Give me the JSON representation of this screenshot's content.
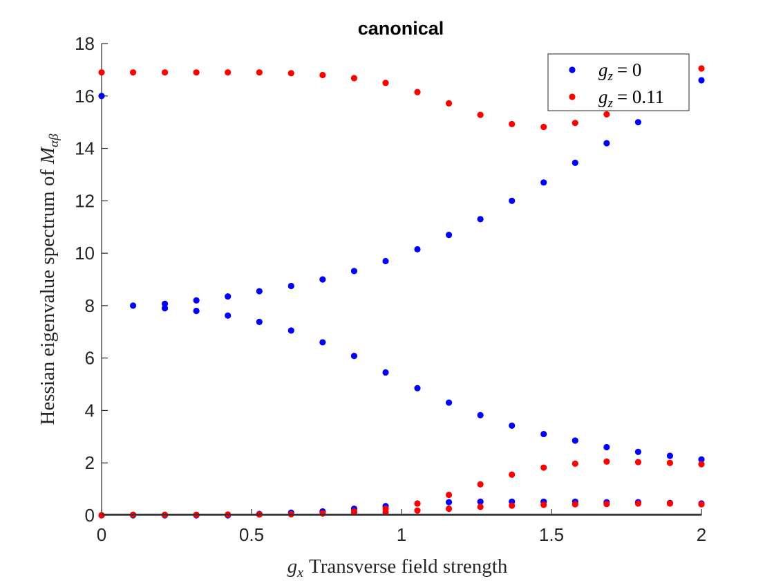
{
  "chart_data": {
    "type": "scatter",
    "title": "canonical",
    "xlabel": {
      "symbol": "g",
      "subscript": "x",
      "text": "Transverse field strength"
    },
    "ylabel": {
      "text": "Hessian eigenvalue spectrum of",
      "symbol": "M",
      "subscript": "αβ"
    },
    "xlim": [
      0,
      2
    ],
    "ylim": [
      0,
      18
    ],
    "xticks": [
      0,
      0.5,
      1,
      1.5,
      2
    ],
    "yticks": [
      0,
      2,
      4,
      6,
      8,
      10,
      12,
      14,
      16,
      18
    ],
    "grid": false,
    "legend": "upper right",
    "series": [
      {
        "name": {
          "symbol": "g",
          "subscript": "z",
          "rest": "= 0"
        },
        "color": "#0000ff",
        "x": [
          0,
          0,
          0.105,
          0.105,
          0.211,
          0.211,
          0.211,
          0.316,
          0.316,
          0.316,
          0.421,
          0.421,
          0.421,
          0.526,
          0.526,
          0.526,
          0.632,
          0.632,
          0.632,
          0.737,
          0.737,
          0.737,
          0.842,
          0.842,
          0.842,
          0.947,
          0.947,
          0.947,
          1.053,
          1.053,
          1.053,
          1.158,
          1.158,
          1.158,
          1.263,
          1.263,
          1.263,
          1.368,
          1.368,
          1.368,
          1.474,
          1.474,
          1.474,
          1.579,
          1.579,
          1.579,
          1.684,
          1.684,
          1.684,
          1.789,
          1.789,
          1.789,
          1.895,
          1.895,
          1.895,
          2,
          2,
          2
        ],
        "values": [
          16,
          0,
          8,
          0,
          8.07,
          7.9,
          0,
          8.2,
          7.8,
          0,
          8.35,
          7.62,
          0,
          8.55,
          7.38,
          0.05,
          8.75,
          7.05,
          0.1,
          9,
          6.6,
          0.15,
          9.32,
          6.08,
          0.25,
          9.7,
          5.45,
          0.35,
          10.15,
          4.85,
          0.45,
          10.7,
          4.3,
          0.5,
          11.3,
          3.82,
          0.52,
          12,
          3.42,
          0.52,
          12.7,
          3.1,
          0.52,
          13.45,
          2.85,
          0.52,
          14.2,
          2.6,
          0.5,
          15,
          2.42,
          0.5,
          15.8,
          2.27,
          0.47,
          16.6,
          2.13,
          0.45
        ]
      },
      {
        "name": {
          "symbol": "g",
          "subscript": "z",
          "rest": "= 0.11"
        },
        "color": "#ff0000",
        "x": [
          0,
          0,
          0.105,
          0.105,
          0.211,
          0.211,
          0.316,
          0.316,
          0.421,
          0.421,
          0.526,
          0.526,
          0.632,
          0.632,
          0.737,
          0.737,
          0.842,
          0.842,
          0.842,
          0.947,
          0.947,
          0.947,
          1.053,
          1.053,
          1.053,
          1.158,
          1.158,
          1.158,
          1.263,
          1.263,
          1.263,
          1.368,
          1.368,
          1.368,
          1.474,
          1.474,
          1.474,
          1.579,
          1.579,
          1.579,
          1.684,
          1.684,
          1.684,
          1.789,
          1.789,
          1.789,
          1.895,
          1.895,
          1.895,
          2,
          2,
          2
        ],
        "values": [
          16.9,
          0,
          16.9,
          0.02,
          16.9,
          0.02,
          16.9,
          0.02,
          16.9,
          0.03,
          16.9,
          0.03,
          16.87,
          0.04,
          16.8,
          0.07,
          16.68,
          0.15,
          0.1,
          16.5,
          0.25,
          0.12,
          16.15,
          0.45,
          0.18,
          15.72,
          0.78,
          0.25,
          15.28,
          1.18,
          0.32,
          14.93,
          1.55,
          0.37,
          14.82,
          1.82,
          0.4,
          14.97,
          1.97,
          0.42,
          15.3,
          2.05,
          0.43,
          15.7,
          2.03,
          0.45,
          16.35,
          2,
          0.45,
          17.05,
          1.95,
          0.42
        ]
      }
    ]
  }
}
